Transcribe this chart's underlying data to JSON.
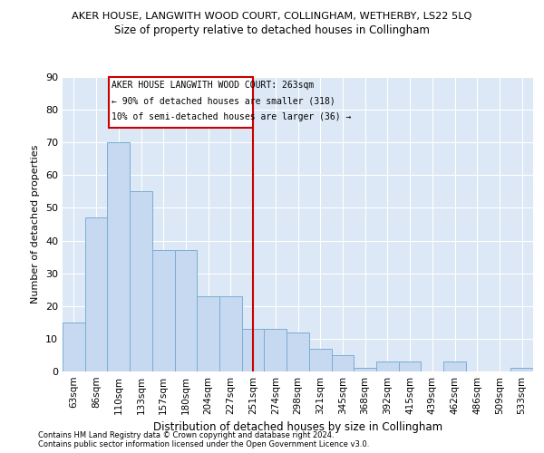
{
  "title": "AKER HOUSE, LANGWITH WOOD COURT, COLLINGHAM, WETHERBY, LS22 5LQ",
  "subtitle": "Size of property relative to detached houses in Collingham",
  "xlabel": "Distribution of detached houses by size in Collingham",
  "ylabel": "Number of detached properties",
  "categories": [
    "63sqm",
    "86sqm",
    "110sqm",
    "133sqm",
    "157sqm",
    "180sqm",
    "204sqm",
    "227sqm",
    "251sqm",
    "274sqm",
    "298sqm",
    "321sqm",
    "345sqm",
    "368sqm",
    "392sqm",
    "415sqm",
    "439sqm",
    "462sqm",
    "486sqm",
    "509sqm",
    "533sqm"
  ],
  "values": [
    15,
    47,
    70,
    55,
    37,
    37,
    23,
    23,
    13,
    13,
    12,
    7,
    5,
    1,
    3,
    3,
    0,
    3,
    0,
    0,
    1
  ],
  "bar_color": "#c6d9f0",
  "bar_edge_color": "#7badd4",
  "vline_x": 8.0,
  "vline_color": "#cc0000",
  "annotation_line1": "AKER HOUSE LANGWITH WOOD COURT: 263sqm",
  "annotation_line2": "← 90% of detached houses are smaller (318)",
  "annotation_line3": "10% of semi-detached houses are larger (36) →",
  "annotation_box_color": "#cc0000",
  "ylim": [
    0,
    90
  ],
  "yticks": [
    0,
    10,
    20,
    30,
    40,
    50,
    60,
    70,
    80,
    90
  ],
  "background_color": "#dce8f5",
  "grid_color": "#ffffff",
  "footer1": "Contains HM Land Registry data © Crown copyright and database right 2024.",
  "footer2": "Contains public sector information licensed under the Open Government Licence v3.0."
}
